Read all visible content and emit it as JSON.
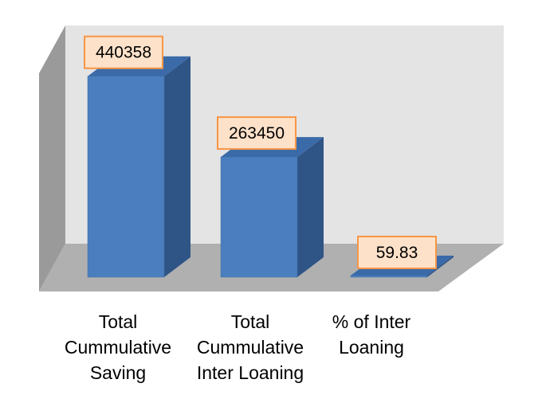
{
  "chart_data": {
    "type": "bar",
    "title": "",
    "xlabel": "",
    "ylabel": "",
    "categories": [
      "Total Cummulative Saving",
      "Total Cummulative Inter Loaning",
      "% of Inter Loaning"
    ],
    "category_lines": [
      [
        "Total",
        "Cummulative",
        "Saving"
      ],
      [
        "Total",
        "Cummulative",
        "Inter Loaning"
      ],
      [
        "% of Inter",
        "Loaning"
      ]
    ],
    "values": [
      440358,
      263450,
      59.83
    ],
    "data_labels": [
      "440358",
      "263450",
      "59.83"
    ],
    "ylim": [
      0,
      480000
    ],
    "grid": false,
    "legend": "none",
    "style": "3d-column",
    "colors": {
      "bar_front": "#4a7ebf",
      "bar_side": "#2f5486",
      "bar_top": "#3a6aa8",
      "label_fill": "#fde1c9",
      "label_border": "#f79646",
      "back_wall": "#e4e4e4",
      "side_wall": "#9a9a9a",
      "floor": "#b0b0b0"
    }
  }
}
